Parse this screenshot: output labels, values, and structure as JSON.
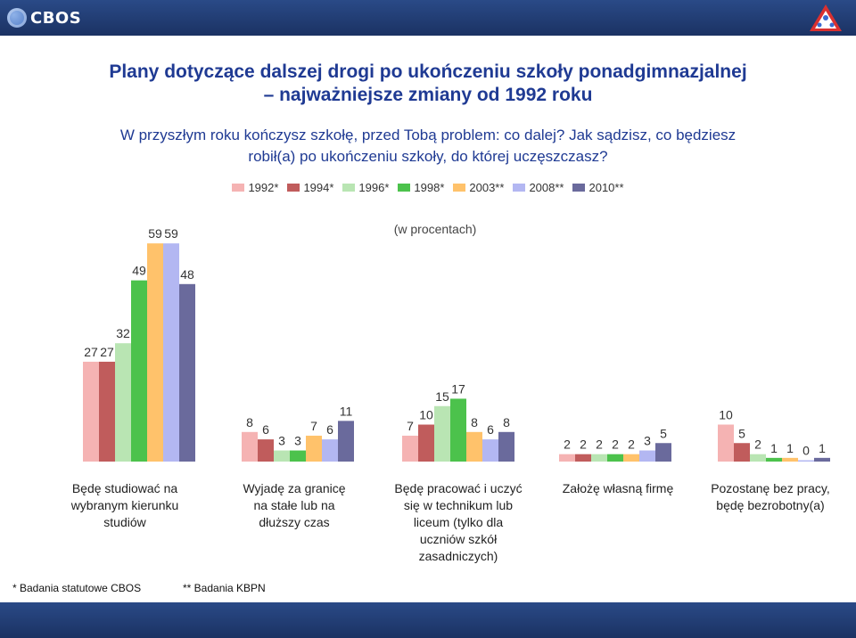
{
  "header": {
    "logo_text": "CBOS"
  },
  "title_line1": "Plany dotyczące dalszej drogi po ukończeniu szkoły ponadgimnazjalnej",
  "title_line2": "– najważniejsze zmiany od 1992 roku",
  "question_line1": "W przyszłym roku kończysz szkołę, przed Tobą problem: co dalej? Jak sądzisz, co będziesz",
  "question_line2": "robił(a) po ukończeniu szkoły, do której uczęszczasz?",
  "footnotes": {
    "cbos": "* Badania statutowe CBOS",
    "kbpn": "** Badania KBPN"
  },
  "chart_data": {
    "type": "bar",
    "unit_note": "(w procentach)",
    "legend_placement": "top",
    "categories": [
      [
        "Będę studiować na",
        "wybranym kierunku",
        "studiów"
      ],
      [
        "Wyjadę za granicę",
        "na stałe lub na",
        "dłuższy czas"
      ],
      [
        "Będę pracować i uczyć",
        "się w technikum lub",
        "liceum (tylko dla",
        "uczniów szkół",
        "zasadniczych)"
      ],
      [
        "Założę własną firmę"
      ],
      [
        "Pozostanę bez pracy,",
        "będę bezrobotny(a)"
      ]
    ],
    "series": [
      {
        "name": "1992*",
        "color": "#f5b3b3",
        "values": [
          27,
          8,
          7,
          2,
          10
        ]
      },
      {
        "name": "1994*",
        "color": "#c05c5c",
        "values": [
          27,
          6,
          10,
          2,
          5
        ]
      },
      {
        "name": "1996*",
        "color": "#b9e5b3",
        "values": [
          32,
          3,
          15,
          2,
          2
        ]
      },
      {
        "name": "1998*",
        "color": "#4cc24c",
        "values": [
          49,
          3,
          17,
          2,
          1
        ]
      },
      {
        "name": "2003**",
        "color": "#ffc26b",
        "values": [
          59,
          7,
          8,
          2,
          1
        ]
      },
      {
        "name": "2008**",
        "color": "#b3b7f2",
        "values": [
          59,
          6,
          6,
          3,
          0
        ]
      },
      {
        "name": "2010**",
        "color": "#6a6a9c",
        "values": [
          48,
          11,
          8,
          5,
          1
        ]
      }
    ],
    "ylim": [
      0,
      60
    ],
    "grid": false
  }
}
